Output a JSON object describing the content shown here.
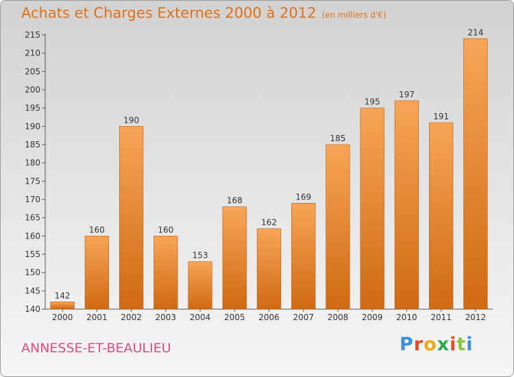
{
  "header": {
    "title": "Achats et Charges Externes 2000 à 2012",
    "unit": "(en milliers d'€)"
  },
  "footer": {
    "commune": "ANNESSE-ET-BEAULIEU",
    "logo": {
      "letters": [
        "P",
        "r",
        "o",
        "x",
        "i",
        "t",
        "i"
      ],
      "colors": [
        "#3d8fd6",
        "#e24a2a",
        "#f2a81d",
        "#2fa84f",
        "#e24a2a",
        "#8cc63e",
        "#3d8fd6"
      ]
    }
  },
  "chart_data": {
    "type": "bar",
    "categories": [
      "2000",
      "2001",
      "2002",
      "2003",
      "2004",
      "2005",
      "2006",
      "2007",
      "2008",
      "2009",
      "2010",
      "2011",
      "2012"
    ],
    "values": [
      142,
      160,
      190,
      160,
      153,
      168,
      162,
      169,
      185,
      195,
      197,
      191,
      214
    ],
    "title": "Achats et Charges Externes 2000 à 2012",
    "xlabel": "",
    "ylabel": "",
    "ylim": [
      140,
      215
    ],
    "yticks": [
      140,
      145,
      150,
      155,
      160,
      165,
      170,
      175,
      180,
      185,
      190,
      195,
      200,
      205,
      210,
      215
    ],
    "grid": false,
    "bar_color": "#f08c2e"
  }
}
